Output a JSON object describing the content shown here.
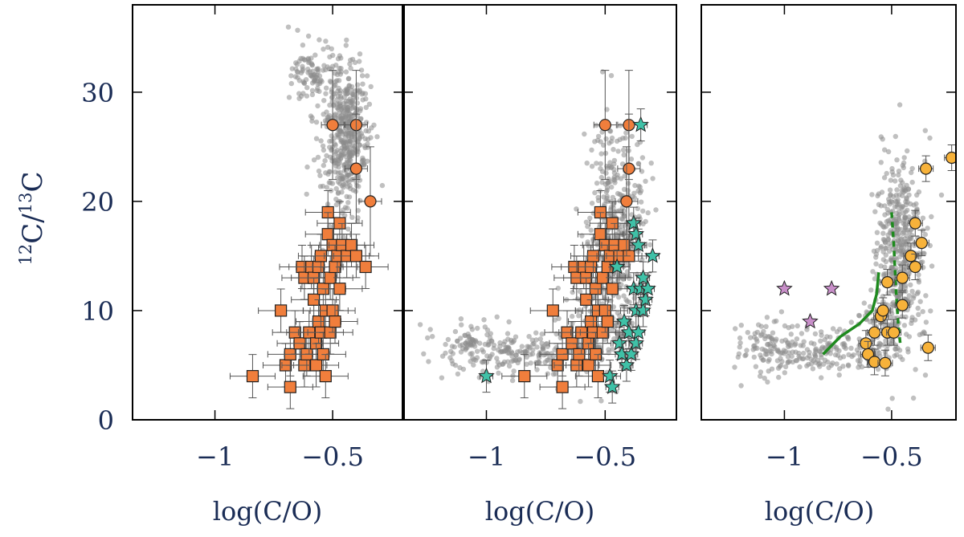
{
  "chart_data": {
    "type": "scatter",
    "ylabel_parts": {
      "sup1": "12",
      "c1": "C",
      "slash": "/",
      "sup2": "13",
      "c2": "C"
    },
    "ylim": [
      0,
      38
    ],
    "yticks": [
      {
        "v": 0,
        "label": "0"
      },
      {
        "v": 10,
        "label": "10"
      },
      {
        "v": 20,
        "label": "20"
      },
      {
        "v": 30,
        "label": "30"
      }
    ],
    "xlim": [
      -1.35,
      -0.2
    ],
    "xticks": [
      {
        "v": -1,
        "label": "−1"
      },
      {
        "v": -0.5,
        "label": "−0.5"
      }
    ],
    "colors": {
      "square": "#f07e3c",
      "circle": "#f07e3c",
      "teal_star": "#3fc1a7",
      "pink_star": "#c88fc9",
      "yellow_circle": "#f7b23a",
      "cloud": "#8c8c8c",
      "green": "#1e8a1e",
      "err": "#555555",
      "axis": "#000000",
      "text": "#1a2c55"
    },
    "panels": [
      {
        "id": "left",
        "xlabel": "log(C/O)",
        "cloud": [
          {
            "cx": -0.45,
            "cy": 25,
            "sx": 0.05,
            "sy": 3.5,
            "n": 380
          },
          {
            "cx": -0.57,
            "cy": 31.5,
            "sx": 0.05,
            "sy": 1.4,
            "n": 110
          },
          {
            "cx": -0.42,
            "cy": 28.5,
            "sx": 0.035,
            "sy": 1.8,
            "n": 80
          }
        ],
        "squares": [
          {
            "x": -0.84,
            "y": 4
          },
          {
            "x": -0.72,
            "y": 10
          },
          {
            "x": -0.7,
            "y": 5
          },
          {
            "x": -0.68,
            "y": 3
          },
          {
            "x": -0.68,
            "y": 6
          },
          {
            "x": -0.66,
            "y": 8
          },
          {
            "x": -0.64,
            "y": 7
          },
          {
            "x": -0.63,
            "y": 14
          },
          {
            "x": -0.62,
            "y": 13
          },
          {
            "x": -0.62,
            "y": 5
          },
          {
            "x": -0.61,
            "y": 6
          },
          {
            "x": -0.6,
            "y": 8
          },
          {
            "x": -0.59,
            "y": 14
          },
          {
            "x": -0.58,
            "y": 13
          },
          {
            "x": -0.58,
            "y": 11
          },
          {
            "x": -0.57,
            "y": 7
          },
          {
            "x": -0.57,
            "y": 5
          },
          {
            "x": -0.56,
            "y": 9
          },
          {
            "x": -0.56,
            "y": 14
          },
          {
            "x": -0.55,
            "y": 8
          },
          {
            "x": -0.55,
            "y": 15
          },
          {
            "x": -0.54,
            "y": 12
          },
          {
            "x": -0.54,
            "y": 6
          },
          {
            "x": -0.53,
            "y": 10
          },
          {
            "x": -0.53,
            "y": 4
          },
          {
            "x": -0.52,
            "y": 19
          },
          {
            "x": -0.52,
            "y": 17
          },
          {
            "x": -0.51,
            "y": 13
          },
          {
            "x": -0.51,
            "y": 8
          },
          {
            "x": -0.5,
            "y": 16
          },
          {
            "x": -0.5,
            "y": 10
          },
          {
            "x": -0.49,
            "y": 14
          },
          {
            "x": -0.49,
            "y": 9
          },
          {
            "x": -0.48,
            "y": 15
          },
          {
            "x": -0.47,
            "y": 18
          },
          {
            "x": -0.47,
            "y": 12
          },
          {
            "x": -0.46,
            "y": 16
          },
          {
            "x": -0.44,
            "y": 15
          },
          {
            "x": -0.42,
            "y": 16
          },
          {
            "x": -0.4,
            "y": 15
          },
          {
            "x": -0.36,
            "y": 14
          }
        ],
        "circles": [
          {
            "x": -0.5,
            "y": 27
          },
          {
            "x": -0.4,
            "y": 27
          },
          {
            "x": -0.4,
            "y": 23
          },
          {
            "x": -0.34,
            "y": 20
          }
        ],
        "teal_stars": [],
        "pink_stars": [],
        "yellow_circles": [],
        "green_solid": [],
        "green_dashed": []
      },
      {
        "id": "middle",
        "xlabel": "log(C/O)",
        "cloud": [
          {
            "cx": -0.45,
            "cy": 17,
            "sx": 0.06,
            "sy": 4.5,
            "n": 420
          },
          {
            "cx": -1.05,
            "cy": 6.5,
            "sx": 0.09,
            "sy": 1.3,
            "n": 120
          },
          {
            "cx": -0.8,
            "cy": 6.2,
            "sx": 0.1,
            "sy": 1.0,
            "n": 110
          },
          {
            "cx": -0.55,
            "cy": 8,
            "sx": 0.07,
            "sy": 1.8,
            "n": 120
          }
        ],
        "squares": [
          {
            "x": -0.84,
            "y": 4
          },
          {
            "x": -0.72,
            "y": 10
          },
          {
            "x": -0.7,
            "y": 5
          },
          {
            "x": -0.68,
            "y": 3
          },
          {
            "x": -0.68,
            "y": 6
          },
          {
            "x": -0.66,
            "y": 8
          },
          {
            "x": -0.64,
            "y": 7
          },
          {
            "x": -0.63,
            "y": 14
          },
          {
            "x": -0.62,
            "y": 13
          },
          {
            "x": -0.62,
            "y": 5
          },
          {
            "x": -0.61,
            "y": 6
          },
          {
            "x": -0.6,
            "y": 8
          },
          {
            "x": -0.59,
            "y": 14
          },
          {
            "x": -0.58,
            "y": 13
          },
          {
            "x": -0.58,
            "y": 11
          },
          {
            "x": -0.57,
            "y": 7
          },
          {
            "x": -0.57,
            "y": 5
          },
          {
            "x": -0.56,
            "y": 9
          },
          {
            "x": -0.56,
            "y": 14
          },
          {
            "x": -0.55,
            "y": 8
          },
          {
            "x": -0.55,
            "y": 15
          },
          {
            "x": -0.54,
            "y": 12
          },
          {
            "x": -0.54,
            "y": 6
          },
          {
            "x": -0.53,
            "y": 10
          },
          {
            "x": -0.53,
            "y": 4
          },
          {
            "x": -0.52,
            "y": 19
          },
          {
            "x": -0.52,
            "y": 17
          },
          {
            "x": -0.51,
            "y": 13
          },
          {
            "x": -0.51,
            "y": 8
          },
          {
            "x": -0.5,
            "y": 16
          },
          {
            "x": -0.5,
            "y": 10
          },
          {
            "x": -0.49,
            "y": 14
          },
          {
            "x": -0.49,
            "y": 9
          },
          {
            "x": -0.48,
            "y": 15
          },
          {
            "x": -0.47,
            "y": 18
          },
          {
            "x": -0.47,
            "y": 12
          },
          {
            "x": -0.46,
            "y": 16
          },
          {
            "x": -0.44,
            "y": 15
          },
          {
            "x": -0.42,
            "y": 16
          },
          {
            "x": -0.4,
            "y": 15
          }
        ],
        "circles": [
          {
            "x": -0.5,
            "y": 27
          },
          {
            "x": -0.4,
            "y": 27
          },
          {
            "x": -0.4,
            "y": 23
          },
          {
            "x": -0.41,
            "y": 20
          }
        ],
        "teal_stars": [
          {
            "x": -1.0,
            "y": 4
          },
          {
            "x": -0.48,
            "y": 4
          },
          {
            "x": -0.47,
            "y": 3
          },
          {
            "x": -0.45,
            "y": 14
          },
          {
            "x": -0.44,
            "y": 7
          },
          {
            "x": -0.43,
            "y": 6
          },
          {
            "x": -0.42,
            "y": 9
          },
          {
            "x": -0.41,
            "y": 5
          },
          {
            "x": -0.4,
            "y": 8
          },
          {
            "x": -0.39,
            "y": 6
          },
          {
            "x": -0.38,
            "y": 18
          },
          {
            "x": -0.38,
            "y": 12
          },
          {
            "x": -0.37,
            "y": 17
          },
          {
            "x": -0.37,
            "y": 10
          },
          {
            "x": -0.37,
            "y": 7
          },
          {
            "x": -0.36,
            "y": 16
          },
          {
            "x": -0.36,
            "y": 8
          },
          {
            "x": -0.35,
            "y": 12
          },
          {
            "x": -0.35,
            "y": 27
          },
          {
            "x": -0.34,
            "y": 13
          },
          {
            "x": -0.34,
            "y": 10
          },
          {
            "x": -0.33,
            "y": 11
          },
          {
            "x": -0.32,
            "y": 12
          },
          {
            "x": -0.3,
            "y": 15
          }
        ],
        "pink_stars": [],
        "yellow_circles": [],
        "green_solid": [],
        "green_dashed": []
      },
      {
        "id": "right",
        "xlabel": "log(C/O)",
        "cloud": [
          {
            "cx": -0.46,
            "cy": 16,
            "sx": 0.06,
            "sy": 4.3,
            "n": 420
          },
          {
            "cx": -1.05,
            "cy": 6.5,
            "sx": 0.09,
            "sy": 1.3,
            "n": 120
          },
          {
            "cx": -0.8,
            "cy": 6.2,
            "sx": 0.1,
            "sy": 1.0,
            "n": 110
          },
          {
            "cx": -0.55,
            "cy": 7.8,
            "sx": 0.07,
            "sy": 1.8,
            "n": 120
          }
        ],
        "squares": [],
        "circles": [],
        "teal_stars": [],
        "pink_stars": [
          {
            "x": -1.0,
            "y": 12
          },
          {
            "x": -0.78,
            "y": 12
          },
          {
            "x": -0.88,
            "y": 9
          }
        ],
        "yellow_circles": [
          {
            "x": -0.62,
            "y": 7
          },
          {
            "x": -0.61,
            "y": 6
          },
          {
            "x": -0.58,
            "y": 8
          },
          {
            "x": -0.58,
            "y": 5.3
          },
          {
            "x": -0.55,
            "y": 9.5
          },
          {
            "x": -0.54,
            "y": 10
          },
          {
            "x": -0.53,
            "y": 5.2
          },
          {
            "x": -0.52,
            "y": 8
          },
          {
            "x": -0.52,
            "y": 12.6
          },
          {
            "x": -0.49,
            "y": 8
          },
          {
            "x": -0.45,
            "y": 13
          },
          {
            "x": -0.45,
            "y": 10.5
          },
          {
            "x": -0.41,
            "y": 15
          },
          {
            "x": -0.39,
            "y": 18
          },
          {
            "x": -0.39,
            "y": 14
          },
          {
            "x": -0.36,
            "y": 16.2
          },
          {
            "x": -0.34,
            "y": 23
          },
          {
            "x": -0.33,
            "y": 6.6
          },
          {
            "x": -0.22,
            "y": 24
          }
        ],
        "green_solid": [
          {
            "x": -0.82,
            "y": 6
          },
          {
            "x": -0.74,
            "y": 7.6
          },
          {
            "x": -0.65,
            "y": 8.8
          },
          {
            "x": -0.59,
            "y": 10
          },
          {
            "x": -0.57,
            "y": 11.5
          },
          {
            "x": -0.56,
            "y": 13.5
          }
        ],
        "green_dashed": [
          {
            "x": -0.5,
            "y": 19
          },
          {
            "x": -0.49,
            "y": 16
          },
          {
            "x": -0.48,
            "y": 12
          },
          {
            "x": -0.47,
            "y": 9
          },
          {
            "x": -0.46,
            "y": 7
          }
        ]
      }
    ]
  }
}
